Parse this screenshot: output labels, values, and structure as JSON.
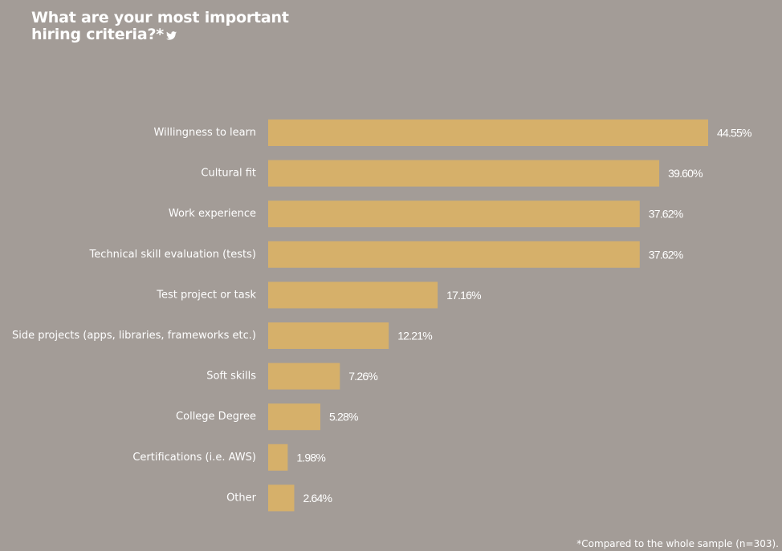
{
  "title_line1": "What are your most important",
  "title_line2": "hiring criteria?*",
  "title_icon": "twitter-icon",
  "footnote": "*Compared to the whole sample (n=303).",
  "colors": {
    "background": "#a39c97",
    "bar": "#d6b06a",
    "text": "#ffffff"
  },
  "chart_data": {
    "type": "bar",
    "orientation": "horizontal",
    "categories": [
      "Willingness to learn",
      "Cultural fit",
      "Work experience",
      "Technical skill evaluation (tests)",
      "Test project or task",
      "Side projects (apps, libraries, frameworks etc.)",
      "Soft skills",
      "College Degree",
      "Certifications (i.e. AWS)",
      "Other"
    ],
    "values": [
      44.55,
      39.6,
      37.62,
      37.62,
      17.16,
      12.21,
      7.26,
      5.28,
      1.98,
      2.64
    ],
    "value_labels": [
      "44.55%",
      "39.60%",
      "37.62%",
      "37.62%",
      "17.16%",
      "12.21%",
      "7.26%",
      "5.28%",
      "1.98%",
      "2.64%"
    ],
    "title": "What are your most important hiring criteria?*",
    "xlabel": "",
    "ylabel": "",
    "xlim": [
      0,
      44.55
    ],
    "grid": false,
    "legend": "none"
  }
}
